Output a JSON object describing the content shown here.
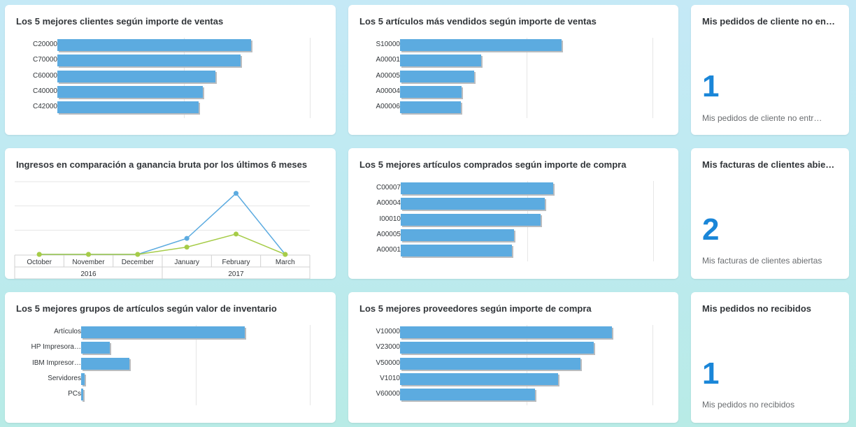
{
  "colors": {
    "bar": "#5cabe0",
    "kpi": "#1a86d8",
    "line_revenue": "#5cabe0",
    "line_profit": "#a6cc48"
  },
  "tiles": {
    "top_customers": {
      "title": "Los 5 mejores clientes según importe de ventas"
    },
    "top_items_sold": {
      "title": "Los 5 artículos más vendidos según importe de ventas"
    },
    "kpi_orders_not_delivered": {
      "title": "Mis pedidos de cliente no en…",
      "value": "1",
      "subtitle": "Mis pedidos de cliente no entr…"
    },
    "revenue_vs_profit": {
      "title": "Ingresos en comparación a ganancia bruta por los últimos 6 meses"
    },
    "top_items_purchased": {
      "title": "Los 5 mejores artículos comprados según importe de compra"
    },
    "kpi_open_invoices": {
      "title": "Mis facturas de clientes abie…",
      "value": "2",
      "subtitle": "Mis facturas de clientes abiertas"
    },
    "top_item_groups": {
      "title": "Los 5 mejores grupos de artículos según valor de inventario"
    },
    "top_vendors": {
      "title": "Los 5 mejores proveedores según importe de compra"
    },
    "kpi_orders_not_received": {
      "title": "Mis pedidos no recibidos",
      "value": "1",
      "subtitle": "Mis pedidos no recibidos"
    }
  },
  "chart_data": [
    {
      "id": "top_customers",
      "type": "bar",
      "orientation": "horizontal",
      "categories": [
        "C20000",
        "C70000",
        "C60000",
        "C40000",
        "C42000"
      ],
      "values": [
        92,
        87,
        75,
        69,
        67
      ],
      "xlim": [
        0,
        120
      ],
      "grid": true
    },
    {
      "id": "top_items_sold",
      "type": "bar",
      "orientation": "horizontal",
      "categories": [
        "S10000",
        "A00001",
        "A00005",
        "A00004",
        "A00006"
      ],
      "values": [
        128,
        64,
        59,
        49,
        48
      ],
      "xlim": [
        0,
        200
      ],
      "grid": true
    },
    {
      "id": "revenue_vs_profit",
      "type": "line",
      "x": [
        "October",
        "November",
        "December",
        "January",
        "February",
        "March"
      ],
      "x_groups": [
        {
          "label": "2016",
          "span": 3
        },
        {
          "label": "2017",
          "span": 3
        }
      ],
      "series": [
        {
          "values": [
            0,
            0,
            0,
            22,
            84,
            0
          ]
        },
        {
          "values": [
            0,
            0,
            0,
            10,
            28,
            0
          ]
        }
      ],
      "ylim": [
        0,
        100
      ],
      "grid": true
    },
    {
      "id": "top_items_purchased",
      "type": "bar",
      "orientation": "horizontal",
      "categories": [
        "C00007",
        "A00004",
        "I00010",
        "A00005",
        "A00001"
      ],
      "values": [
        121,
        114,
        111,
        90,
        88
      ],
      "xlim": [
        0,
        200
      ],
      "grid": true
    },
    {
      "id": "top_item_groups",
      "type": "bar",
      "orientation": "horizontal",
      "categories": [
        "Artículos",
        "HP Impresora…",
        "IBM Impresor…",
        "Servidores",
        "PCs"
      ],
      "values": [
        143,
        25,
        42,
        3,
        2
      ],
      "xlim": [
        0,
        200
      ],
      "grid": true
    },
    {
      "id": "top_vendors",
      "type": "bar",
      "orientation": "horizontal",
      "categories": [
        "V10000",
        "V23000",
        "V50000",
        "V1010",
        "V60000"
      ],
      "values": [
        126,
        115,
        107,
        94,
        80
      ],
      "xlim": [
        0,
        150
      ],
      "grid": true
    }
  ]
}
